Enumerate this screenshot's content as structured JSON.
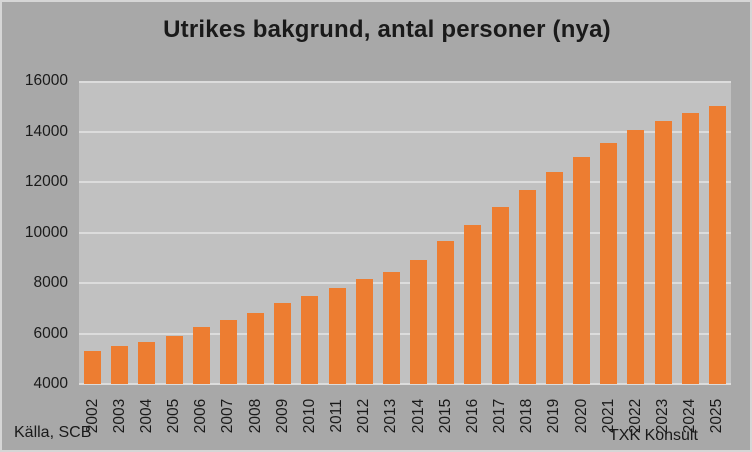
{
  "chart": {
    "title": "Utrikes bakgrund, antal personer (nya)"
  },
  "footer": {
    "source": "Källa, SCB",
    "credit": "TXK Konsult"
  },
  "colors": {
    "bar": "#ED7D31",
    "page_bg": "#A8A8A8",
    "plot_bg": "#C1C1C1",
    "gridline": "#DCDCDC",
    "border": "#D6D6D6",
    "text": "#1A1A1A"
  },
  "chart_data": {
    "type": "bar",
    "title": "Utrikes bakgrund, antal personer (nya)",
    "categories": [
      "2002",
      "2003",
      "2004",
      "2005",
      "2006",
      "2007",
      "2008",
      "2009",
      "2010",
      "2011",
      "2012",
      "2013",
      "2014",
      "2015",
      "2016",
      "2017",
      "2018",
      "2019",
      "2020",
      "2021",
      "2022",
      "2023",
      "2024",
      "2025"
    ],
    "values": [
      5300,
      5500,
      5650,
      5900,
      6250,
      6550,
      6800,
      7200,
      7500,
      7800,
      8150,
      8450,
      8900,
      9650,
      10300,
      11000,
      11700,
      12400,
      13000,
      13550,
      14050,
      14400,
      14750,
      15000
    ],
    "xlabel": "",
    "ylabel": "",
    "ylim": [
      4000,
      16000
    ],
    "yticks": [
      4000,
      6000,
      8000,
      10000,
      12000,
      14000,
      16000
    ],
    "grid": true,
    "legend": false,
    "x_tick_rotation_deg": 90,
    "bar_color": "#ED7D31"
  }
}
